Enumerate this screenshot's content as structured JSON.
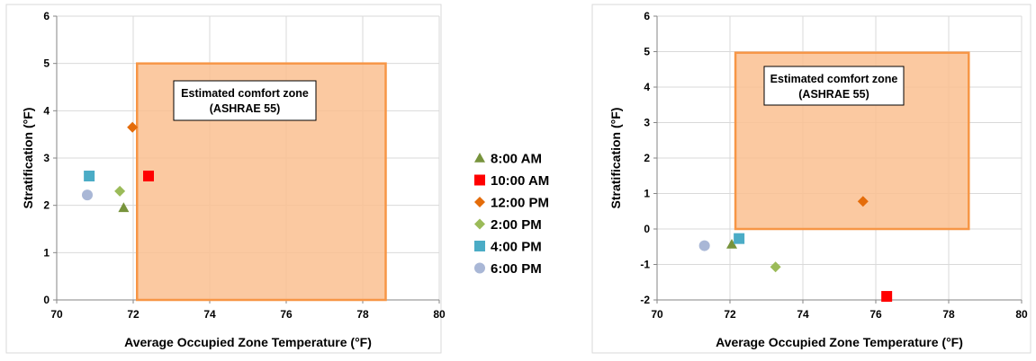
{
  "colors": {
    "8:00 AM": "#77933c",
    "10:00 AM": "#ff0000",
    "12:00 PM": "#e46c0a",
    "2:00 PM": "#9bbb59",
    "4:00 PM": "#4bacc6",
    "6:00 PM": "#a9b7d6",
    "zone_fill": "#fac090",
    "zone_stroke": "#f79646",
    "grid": "#d9d9d9"
  },
  "legend": [
    {
      "name": "8:00 AM",
      "marker": "triangle"
    },
    {
      "name": "10:00 AM",
      "marker": "square"
    },
    {
      "name": "12:00 PM",
      "marker": "diamond"
    },
    {
      "name": "2:00 PM",
      "marker": "diamond"
    },
    {
      "name": "4:00 PM",
      "marker": "square"
    },
    {
      "name": "6:00 PM",
      "marker": "circle"
    }
  ],
  "chart_data": [
    {
      "type": "scatter",
      "xlabel": "Average Occupied Zone Temperature (°F)",
      "ylabel": "Stratification (°F)",
      "xlim": [
        70,
        80
      ],
      "ylim": [
        0,
        6
      ],
      "xticks": [
        "70",
        "72",
        "74",
        "76",
        "78",
        "80"
      ],
      "yticks": [
        "0",
        "1",
        "2",
        "3",
        "4",
        "5",
        "6"
      ],
      "grid": true,
      "comfort_zone": {
        "label_line1": "Estimated comfort zone",
        "label_line2": "(ASHRAE 55)",
        "x_range": [
          72.1,
          78.6
        ],
        "y_range": [
          0,
          5
        ]
      },
      "series": [
        {
          "name": "8:00 AM",
          "x": [
            71.75
          ],
          "y": [
            1.95
          ]
        },
        {
          "name": "10:00 AM",
          "x": [
            72.4
          ],
          "y": [
            2.62
          ]
        },
        {
          "name": "12:00 PM",
          "x": [
            71.98
          ],
          "y": [
            3.65
          ]
        },
        {
          "name": "2:00 PM",
          "x": [
            71.65
          ],
          "y": [
            2.3
          ]
        },
        {
          "name": "4:00 PM",
          "x": [
            70.85
          ],
          "y": [
            2.62
          ]
        },
        {
          "name": "6:00 PM",
          "x": [
            70.8
          ],
          "y": [
            2.22
          ]
        }
      ]
    },
    {
      "type": "scatter",
      "xlabel": "Average Occupied Zone Temperature (°F)",
      "ylabel": "Stratification (°F)",
      "xlim": [
        70,
        80
      ],
      "ylim": [
        -2,
        6
      ],
      "xticks": [
        "70",
        "72",
        "74",
        "76",
        "78",
        "80"
      ],
      "yticks": [
        "-2",
        "-1",
        "0",
        "1",
        "2",
        "3",
        "4",
        "5",
        "6"
      ],
      "grid": true,
      "comfort_zone": {
        "label_line1": "Estimated comfort zone",
        "label_line2": "(ASHRAE 55)",
        "x_range": [
          72.15,
          78.55
        ],
        "y_range": [
          0,
          4.97
        ]
      },
      "series": [
        {
          "name": "8:00 AM",
          "x": [
            72.05
          ],
          "y": [
            -0.43
          ]
        },
        {
          "name": "10:00 AM",
          "x": [
            76.3
          ],
          "y": [
            -1.9
          ]
        },
        {
          "name": "12:00 PM",
          "x": [
            75.65
          ],
          "y": [
            0.78
          ]
        },
        {
          "name": "2:00 PM",
          "x": [
            73.25
          ],
          "y": [
            -1.07
          ]
        },
        {
          "name": "4:00 PM",
          "x": [
            72.25
          ],
          "y": [
            -0.27
          ]
        },
        {
          "name": "6:00 PM",
          "x": [
            71.3
          ],
          "y": [
            -0.47
          ]
        }
      ]
    }
  ]
}
